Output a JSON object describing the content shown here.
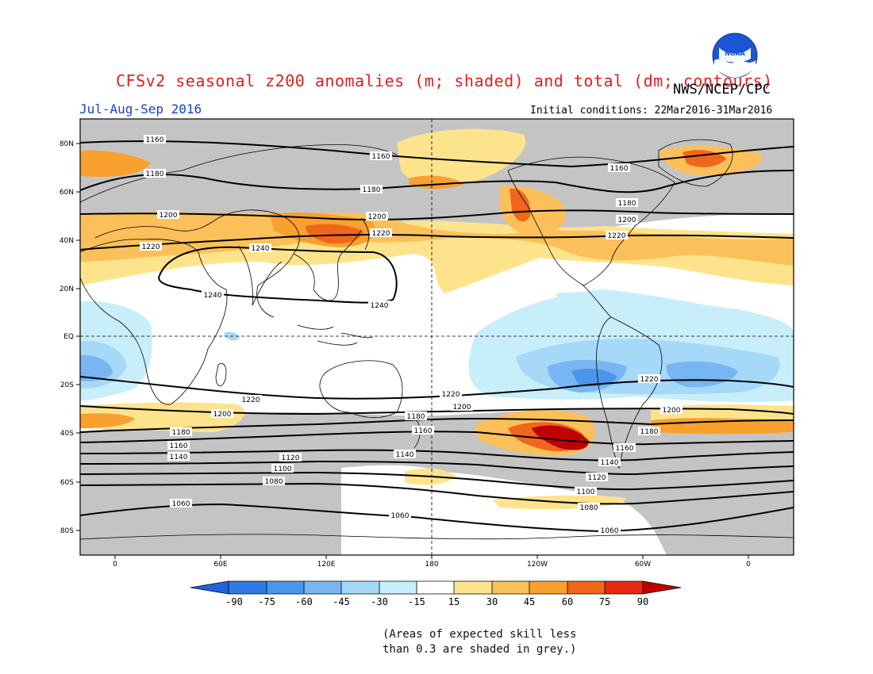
{
  "header": {
    "title": "CFSv2 seasonal z200 anomalies (m; shaded) and total (dm; contours)",
    "agency": "NWS/NCEP/CPC",
    "season": "Jul-Aug-Sep 2016",
    "initial_conditions": "Initial conditions: 22Mar2016-31Mar2016",
    "logo_text": "NOAA"
  },
  "map": {
    "lat_labels": [
      "80N",
      "60N",
      "40N",
      "20N",
      "EQ",
      "20S",
      "40S",
      "60S",
      "80S"
    ],
    "lon_labels": [
      "0",
      "60E",
      "120E",
      "180",
      "120W",
      "60W",
      "0"
    ],
    "contours": [
      {
        "label": "1240"
      },
      {
        "label": "1220"
      },
      {
        "label": "1200"
      },
      {
        "label": "1180"
      },
      {
        "label": "1160"
      },
      {
        "label": "1140"
      },
      {
        "label": "1120"
      },
      {
        "label": "1100"
      },
      {
        "label": "1080"
      },
      {
        "label": "1060"
      }
    ],
    "colors": {
      "grey_skill": "#c4c4c4",
      "neg90": "#1e64dc",
      "neg75": "#2f7ae4",
      "neg60": "#4b95ec",
      "neg45": "#78b6f3",
      "neg30": "#a6d8f7",
      "neg15": "#c8eefa",
      "neutral": "#ffffff",
      "pos15": "#fde48c",
      "pos30": "#fcc05a",
      "pos45": "#f9a02e",
      "pos60": "#f0661a",
      "pos75": "#e82812",
      "pos90": "#c00000"
    }
  },
  "colorbar": {
    "labels": [
      "-90",
      "-75",
      "-60",
      "-45",
      "-30",
      "-15",
      "15",
      "30",
      "45",
      "60",
      "75",
      "90"
    ]
  },
  "footnote": {
    "line1": "(Areas of expected skill less",
    "line2": "than 0.3 are shaded in grey.)"
  }
}
